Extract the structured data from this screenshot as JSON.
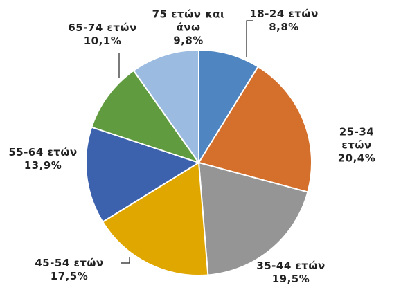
{
  "chart_data": {
    "type": "pie",
    "categories": [
      "18-24 ετών",
      "25-34 ετών",
      "35-44 ετών",
      "45-54 ετών",
      "55-64 ετών",
      "65-74 ετών",
      "75 ετών και άνω"
    ],
    "values": [
      8.8,
      20.4,
      19.5,
      17.5,
      13.9,
      10.1,
      9.8
    ],
    "value_labels": [
      "8,8%",
      "20,4%",
      "19,5%",
      "17,5%",
      "13,9%",
      "10,1%",
      "9,8%"
    ],
    "colors": [
      "#4f86c1",
      "#d5702c",
      "#959595",
      "#e0a700",
      "#3c62ad",
      "#609c3f",
      "#9cbbe1"
    ]
  }
}
